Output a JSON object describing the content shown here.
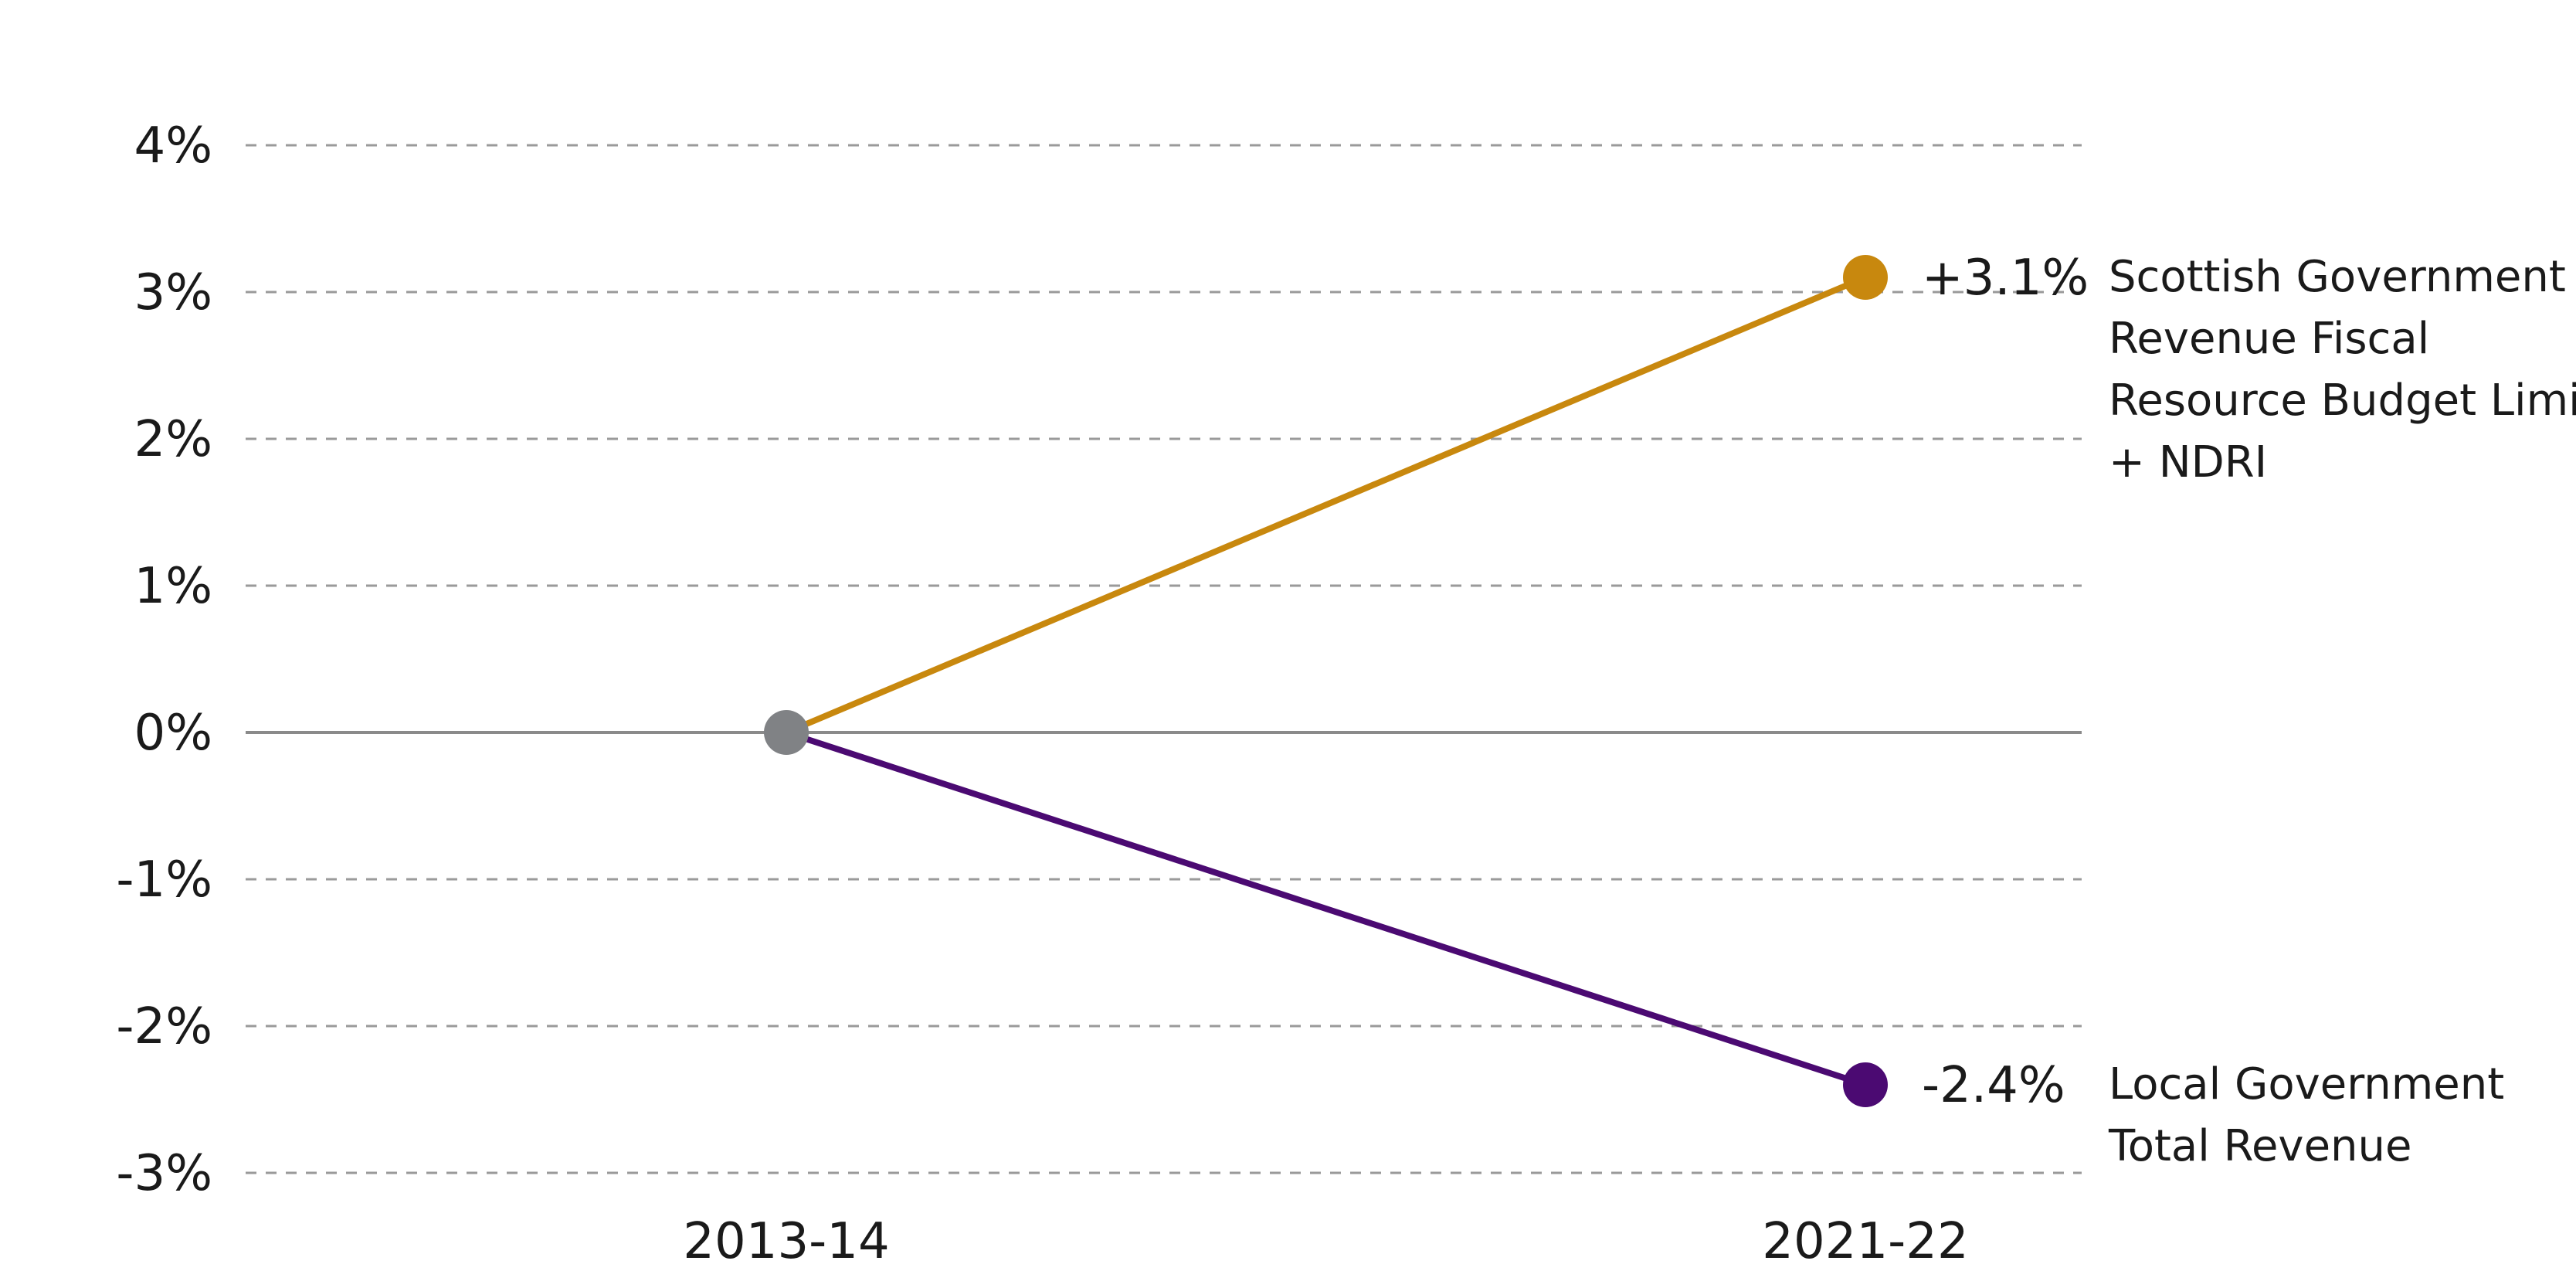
{
  "chart_data": {
    "type": "line",
    "title": "",
    "xlabel": "",
    "ylabel": "",
    "categories": [
      "2013-14",
      "2021-22"
    ],
    "ylim": [
      -3,
      4
    ],
    "y_ticks": [
      4,
      3,
      2,
      1,
      0,
      -1,
      -2,
      -3
    ],
    "y_tick_labels": [
      "4%",
      "3%",
      "2%",
      "1%",
      "0%",
      "-1%",
      "-2%",
      "-3%"
    ],
    "grid": true,
    "legend": "none",
    "start_point_color": "#808285",
    "series": [
      {
        "name": "Scottish Government Revenue Fiscal Resource Budget Limit + NDRI",
        "label_lines": [
          "Scottish Government",
          "Revenue Fiscal",
          "Resource Budget Limit",
          "+ NDRI"
        ],
        "values": [
          0,
          3.1
        ],
        "end_label": "+3.1%",
        "color": "#C8880E"
      },
      {
        "name": "Local Government Total Revenue",
        "label_lines": [
          "Local Government",
          "Total Revenue"
        ],
        "values": [
          0,
          -2.4
        ],
        "end_label": "-2.4%",
        "color": "#4B0A72"
      }
    ]
  }
}
